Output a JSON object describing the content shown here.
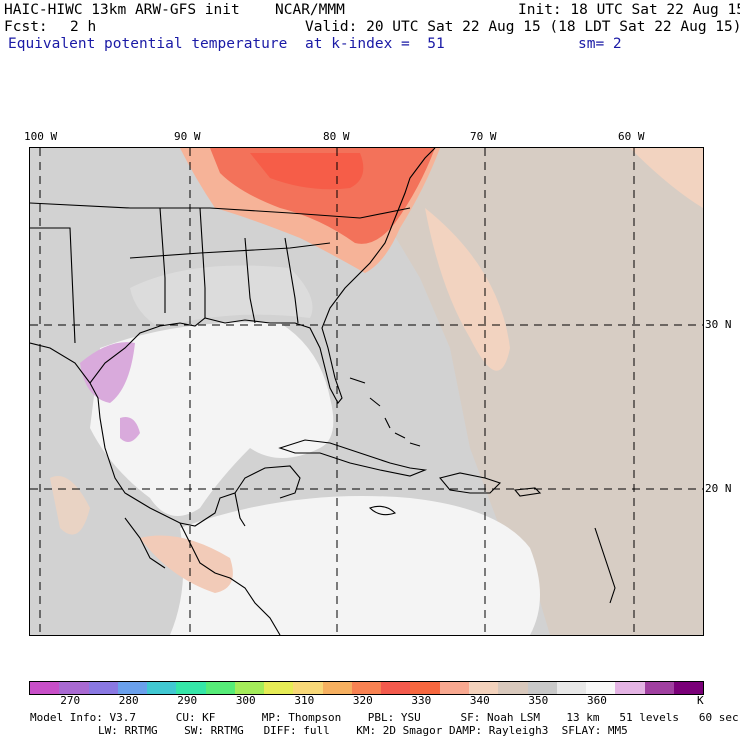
{
  "header": {
    "model": "HAIC-HIWC 13km ARW-GFS init",
    "center": "NCAR/MMM",
    "init": "Init: 18 UTC Sat 22 Aug 15",
    "fcst_label": "Fcst:",
    "fcst_value": "2 h",
    "valid": "Valid: 20 UTC Sat 22 Aug 15 (18 LDT Sat 22 Aug 15)",
    "field": "Equivalent potential temperature",
    "level": "at k-index =  51",
    "smoothing": "sm= 2"
  },
  "map": {
    "lon_labels": [
      "100 W",
      "90 W",
      "80 W",
      "70 W",
      "60 W"
    ],
    "lat_labels": [
      "30 N",
      "20 N"
    ]
  },
  "colorbar": {
    "colors": [
      "#c84fc8",
      "#a96ad2",
      "#8a78e2",
      "#6aa0ec",
      "#41c8d2",
      "#35e6a8",
      "#56ec78",
      "#a4ec5a",
      "#e6ec56",
      "#f8d878",
      "#f6b060",
      "#f88252",
      "#f35a4d",
      "#f6673f",
      "#f8a890",
      "#f3d2bc",
      "#d8c8bc",
      "#c8c8c8",
      "#e8e8e8",
      "#f8f8f8",
      "#e4b4e4",
      "#a040a0",
      "#7a0078"
    ],
    "labels": [
      "270",
      "280",
      "290",
      "300",
      "310",
      "320",
      "330",
      "340",
      "350",
      "360"
    ],
    "unit": "K"
  },
  "model_info": {
    "line1": "Model Info: V3.7      CU: KF       MP: Thompson    PBL: YSU      SF: Noah LSM    13 km   51 levels   60 sec",
    "line2": "LW: RRTMG    SW: RRTMG   DIFF: full    KM: 2D Smagor DAMP: Rayleigh3  SFLAY: MM5"
  }
}
